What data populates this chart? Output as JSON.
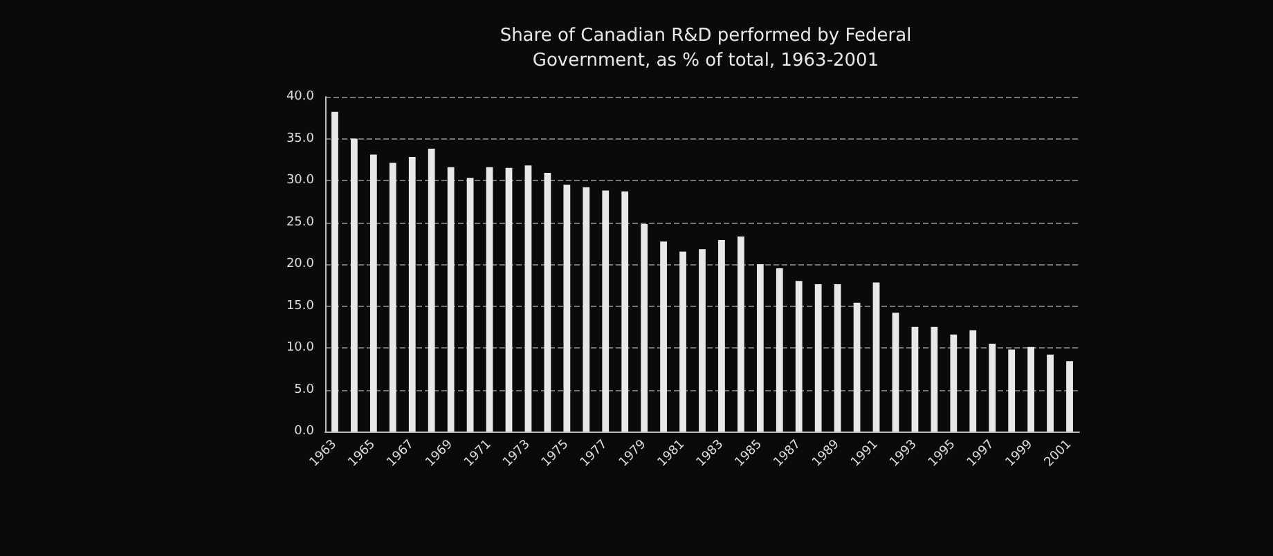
{
  "chart_data": {
    "type": "bar",
    "title": "Share of Canadian R&D performed by Federal\nGovernment, as % of total, 1963-2001",
    "categories": [
      "1963",
      null,
      "1965",
      null,
      "1967",
      null,
      "1969",
      null,
      "1971",
      null,
      "1973",
      null,
      "1975",
      null,
      "1977",
      null,
      "1979",
      null,
      "1981",
      null,
      "1983",
      null,
      "1985",
      null,
      "1987",
      null,
      "1989",
      null,
      "1991",
      null,
      "1993",
      null,
      "1995",
      null,
      "1997",
      null,
      "1999",
      null,
      "2001"
    ],
    "values": [
      38.2,
      35.0,
      33.1,
      32.1,
      32.8,
      33.8,
      31.6,
      30.3,
      31.6,
      31.5,
      31.8,
      30.9,
      29.5,
      29.2,
      28.8,
      28.7,
      24.8,
      22.7,
      21.5,
      21.8,
      22.9,
      23.3,
      20.0,
      19.5,
      18.0,
      17.6,
      17.6,
      15.4,
      17.8,
      14.2,
      12.5,
      12.5,
      11.6,
      12.1,
      10.5,
      9.8,
      10.1,
      9.2,
      8.4
    ],
    "color": "#e8e8e8",
    "ylim": [
      0,
      40
    ],
    "yticks": [
      {
        "value": 0,
        "label": "0.0"
      },
      {
        "value": 5,
        "label": "5.0"
      },
      {
        "value": 10,
        "label": "10.0"
      },
      {
        "value": 15,
        "label": "15.0"
      },
      {
        "value": 20,
        "label": "20.0"
      },
      {
        "value": 25,
        "label": "25.0"
      },
      {
        "value": 30,
        "label": "30.0"
      },
      {
        "value": 35,
        "label": "35.0"
      },
      {
        "value": 40,
        "label": "40.0"
      }
    ],
    "grid": true
  }
}
